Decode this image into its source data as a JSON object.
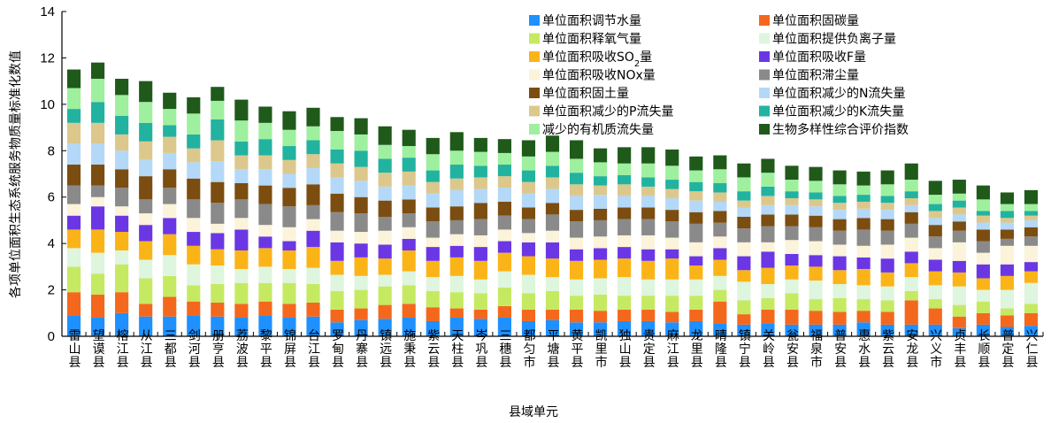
{
  "chart_data": {
    "type": "bar",
    "stacked": true,
    "title": "",
    "xlabel": "县域单元",
    "ylabel": "各项单位面积生态系统服务物质量标准化数值",
    "ylim": [
      0,
      14
    ],
    "yticks": [
      0,
      2,
      4,
      6,
      8,
      10,
      12,
      14
    ],
    "categories": [
      "雷山县",
      "望谟县",
      "榕江县",
      "从江县",
      "三都县",
      "剑河县",
      "册亨县",
      "荔波县",
      "黎平县",
      "锦屏县",
      "台江县",
      "罗甸县",
      "丹寨县",
      "镇远县",
      "施秉县",
      "紫云县",
      "天柱县",
      "岑巩县",
      "三穗县",
      "都匀市",
      "平塘县",
      "黄平县",
      "凯里市",
      "独山县",
      "贵定县",
      "麻江县",
      "龙里县",
      "晴隆县",
      "镇宁县",
      "关岭县",
      "瓮安县",
      "福泉市",
      "普安县",
      "惠水县",
      "紫云县",
      "安龙县",
      "兴义市",
      "贞丰县",
      "长顺县",
      "普定县",
      "兴仁县"
    ],
    "series": [
      {
        "name": "单位面积调节水量",
        "color": "#1e90ff",
        "values": [
          0.9,
          0.8,
          1.0,
          0.85,
          0.85,
          0.9,
          0.85,
          0.8,
          0.9,
          0.8,
          0.85,
          0.6,
          0.7,
          0.75,
          0.8,
          0.65,
          0.8,
          0.75,
          0.8,
          0.65,
          0.7,
          0.6,
          0.6,
          0.65,
          0.65,
          0.6,
          0.65,
          0.55,
          0.5,
          0.55,
          0.5,
          0.5,
          0.5,
          0.6,
          0.5,
          0.5,
          0.5,
          0.35,
          0.5,
          0.4,
          0.45
        ]
      },
      {
        "name": "单位面积固碳量",
        "color": "#f4681e",
        "values": [
          1.0,
          1.0,
          0.9,
          0.55,
          0.85,
          0.6,
          0.6,
          0.6,
          0.6,
          0.6,
          0.6,
          0.55,
          0.5,
          0.6,
          0.6,
          0.6,
          0.4,
          0.4,
          0.5,
          0.5,
          0.45,
          0.55,
          0.5,
          0.5,
          0.5,
          0.45,
          0.5,
          0.95,
          0.45,
          0.6,
          0.65,
          0.6,
          0.55,
          0.5,
          0.55,
          1.05,
          0.7,
          0.5,
          0.5,
          0.5,
          0.55
        ]
      },
      {
        "name": "单位面积释氧气量",
        "color": "#c5ea62",
        "values": [
          1.1,
          0.9,
          1.2,
          1.1,
          0.9,
          0.7,
          0.8,
          0.9,
          0.8,
          0.9,
          0.8,
          0.8,
          0.8,
          0.8,
          0.8,
          0.7,
          0.7,
          0.7,
          0.8,
          0.7,
          0.8,
          0.6,
          0.7,
          0.6,
          0.6,
          0.7,
          0.6,
          0.5,
          0.6,
          0.5,
          0.7,
          0.5,
          0.6,
          0.5,
          0.5,
          0.4,
          0.4,
          0.5,
          0.5,
          0.3,
          0.4
        ]
      },
      {
        "name": "单位面积提供负离子量",
        "color": "#def5de",
        "values": [
          0.8,
          0.9,
          0.6,
          0.8,
          0.9,
          0.9,
          0.8,
          0.6,
          0.7,
          0.6,
          0.7,
          0.7,
          0.6,
          0.5,
          0.6,
          0.6,
          0.7,
          0.6,
          0.7,
          0.8,
          0.6,
          0.7,
          0.7,
          0.8,
          0.7,
          0.7,
          0.7,
          0.6,
          0.8,
          0.6,
          0.6,
          0.8,
          0.6,
          0.6,
          0.6,
          0.6,
          0.6,
          0.8,
          0.5,
          0.8,
          0.9
        ]
      },
      {
        "name": "单位面积吸收SO2量",
        "color": "#fbb418",
        "values": [
          0.8,
          1.0,
          0.8,
          0.8,
          0.9,
          0.8,
          0.7,
          0.8,
          0.8,
          0.8,
          0.9,
          0.6,
          0.8,
          0.7,
          0.9,
          0.7,
          0.8,
          0.8,
          0.8,
          0.8,
          0.8,
          0.8,
          0.8,
          0.8,
          0.8,
          0.9,
          0.6,
          0.7,
          0.5,
          0.7,
          0.6,
          0.6,
          0.6,
          0.7,
          0.6,
          0.6,
          0.6,
          0.6,
          0.5,
          0.6,
          0.5
        ]
      },
      {
        "name": "单位面积吸收F量",
        "color": "#6b37e4",
        "values": [
          0.6,
          1.0,
          0.7,
          0.7,
          0.7,
          0.6,
          0.7,
          0.9,
          0.5,
          0.4,
          0.7,
          0.8,
          0.6,
          0.6,
          0.5,
          0.6,
          0.5,
          0.6,
          0.5,
          0.6,
          0.7,
          0.5,
          0.5,
          0.5,
          0.5,
          0.4,
          0.4,
          0.5,
          0.6,
          0.7,
          0.5,
          0.5,
          0.6,
          0.5,
          0.6,
          0.5,
          0.5,
          0.5,
          0.6,
          0.5,
          0.4
        ]
      },
      {
        "name": "单位面积吸收NOx量",
        "color": "#fbf3da",
        "values": [
          0.5,
          0.4,
          0.4,
          0.5,
          0.6,
          0.6,
          0.4,
          0.5,
          0.5,
          0.6,
          0.5,
          0.5,
          0.5,
          0.6,
          0.5,
          0.4,
          0.5,
          0.5,
          0.5,
          0.4,
          0.5,
          0.5,
          0.5,
          0.5,
          0.6,
          0.5,
          0.6,
          0.5,
          0.6,
          0.4,
          0.6,
          0.6,
          0.5,
          0.5,
          0.6,
          0.6,
          0.5,
          0.8,
          0.5,
          0.8,
          0.7
        ]
      },
      {
        "name": "单位面积滞尘量",
        "color": "#8a8a8a",
        "values": [
          0.8,
          0.5,
          0.8,
          0.6,
          0.7,
          0.8,
          0.9,
          0.8,
          0.9,
          0.9,
          0.6,
          0.8,
          0.8,
          0.6,
          0.6,
          0.7,
          0.6,
          0.7,
          0.6,
          0.6,
          0.7,
          0.7,
          0.7,
          0.7,
          0.7,
          0.7,
          0.8,
          0.6,
          0.6,
          0.7,
          0.6,
          0.6,
          0.6,
          0.7,
          0.6,
          0.6,
          0.5,
          0.5,
          0.5,
          0.3,
          0.4
        ]
      },
      {
        "name": "单位面积固土量",
        "color": "#7b4d10",
        "values": [
          0.9,
          0.9,
          0.8,
          1.0,
          0.8,
          0.9,
          0.9,
          0.7,
          0.8,
          0.8,
          0.9,
          0.8,
          0.7,
          0.7,
          0.6,
          0.6,
          0.6,
          0.7,
          0.6,
          0.5,
          0.5,
          0.5,
          0.5,
          0.5,
          0.5,
          0.5,
          0.5,
          0.5,
          0.5,
          0.5,
          0.5,
          0.5,
          0.5,
          0.5,
          0.5,
          0.5,
          0.5,
          0.4,
          0.5,
          0.4,
          0.4
        ]
      },
      {
        "name": "单位面积减少的N流失量",
        "color": "#b4d8f8",
        "values": [
          0.9,
          0.9,
          0.8,
          0.7,
          0.7,
          0.7,
          0.9,
          0.6,
          0.7,
          0.6,
          0.7,
          0.7,
          0.7,
          0.6,
          0.6,
          0.6,
          0.7,
          0.6,
          0.6,
          0.6,
          0.6,
          0.6,
          0.6,
          0.5,
          0.5,
          0.5,
          0.5,
          0.4,
          0.4,
          0.4,
          0.4,
          0.4,
          0.4,
          0.4,
          0.4,
          0.3,
          0.3,
          0.3,
          0.3,
          0.3,
          0.3
        ]
      },
      {
        "name": "单位面积减少的P流失量",
        "color": "#dcc88c",
        "values": [
          0.9,
          0.9,
          0.7,
          0.8,
          0.7,
          0.6,
          0.9,
          0.6,
          0.6,
          0.6,
          0.6,
          0.6,
          0.6,
          0.6,
          0.6,
          0.5,
          0.5,
          0.5,
          0.5,
          0.5,
          0.5,
          0.5,
          0.4,
          0.5,
          0.4,
          0.4,
          0.4,
          0.4,
          0.3,
          0.4,
          0.3,
          0.3,
          0.3,
          0.3,
          0.3,
          0.3,
          0.3,
          0.3,
          0.3,
          0.2,
          0.2
        ]
      },
      {
        "name": "单位面积减少的K流失量",
        "color": "#22b2a0",
        "values": [
          0.6,
          0.9,
          0.8,
          0.8,
          0.5,
          0.6,
          0.9,
          0.6,
          0.7,
          0.6,
          0.6,
          0.6,
          0.7,
          0.6,
          0.6,
          0.5,
          0.6,
          0.5,
          0.5,
          0.5,
          0.5,
          0.5,
          0.4,
          0.4,
          0.4,
          0.4,
          0.4,
          0.4,
          0.4,
          0.4,
          0.3,
          0.3,
          0.3,
          0.3,
          0.3,
          0.3,
          0.3,
          0.3,
          0.2,
          0.3,
          0.2
        ]
      },
      {
        "name": "减少的有机质流失量",
        "color": "#9ef09e",
        "values": [
          0.9,
          1.0,
          0.9,
          0.9,
          0.7,
          0.9,
          0.8,
          0.9,
          0.7,
          0.7,
          0.6,
          0.8,
          0.7,
          0.6,
          0.5,
          0.7,
          0.6,
          0.6,
          0.5,
          0.6,
          0.6,
          0.6,
          0.6,
          0.5,
          0.6,
          0.6,
          0.5,
          0.6,
          0.6,
          0.6,
          0.5,
          0.5,
          0.5,
          0.4,
          0.5,
          0.5,
          0.4,
          0.3,
          0.5,
          0.3,
          0.3
        ]
      },
      {
        "name": "生物多样性综合评价指数",
        "color": "#1f5a1a",
        "values": [
          0.8,
          0.7,
          0.7,
          0.9,
          0.7,
          0.7,
          0.6,
          0.9,
          0.7,
          0.8,
          0.8,
          0.6,
          0.7,
          0.8,
          0.7,
          0.7,
          0.8,
          0.6,
          0.6,
          0.7,
          0.7,
          0.8,
          0.6,
          0.7,
          0.7,
          0.7,
          0.6,
          0.6,
          0.6,
          0.6,
          0.6,
          0.6,
          0.6,
          0.6,
          0.6,
          0.7,
          0.6,
          0.6,
          0.6,
          0.5,
          0.6
        ]
      }
    ]
  }
}
